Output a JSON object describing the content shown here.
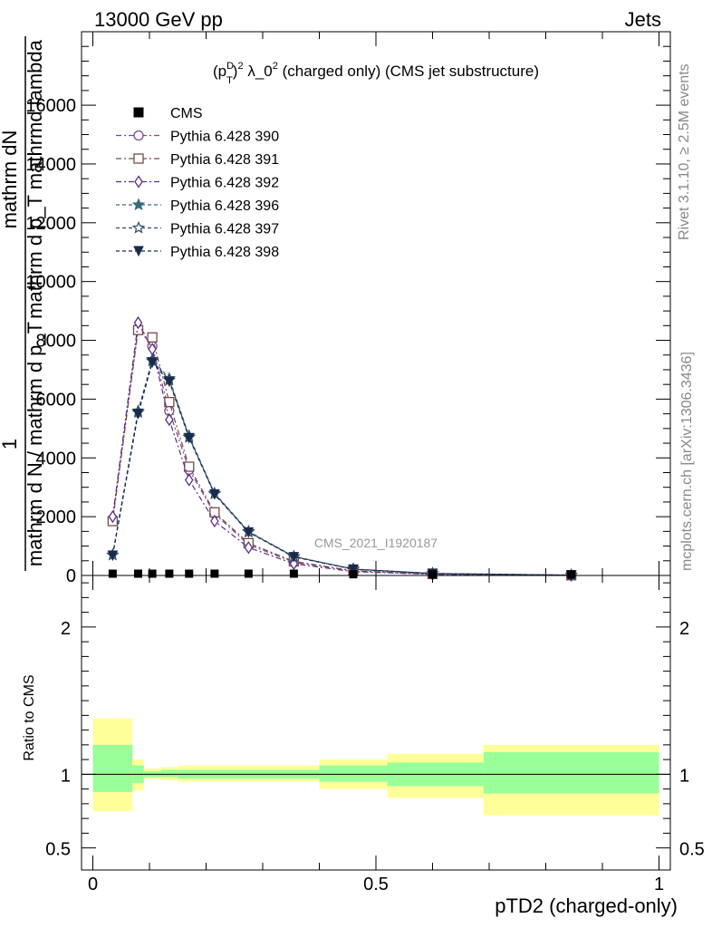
{
  "header": {
    "left": "13000 GeV pp",
    "right": "Jets"
  },
  "side_labels": {
    "rivet": "Rivet 3.1.10, ≥ 2.5M events",
    "mcplots": "mcplots.cern.ch [arXiv:1306.3436]"
  },
  "chart_data": [
    {
      "type": "line",
      "title_prefix": "(p",
      "title_sub": "T",
      "title_sup1": "D",
      "title_sup2": "2",
      "title_mid": " λ_0",
      "title_sup3": "2",
      "title_suffix": " (charged only) (CMS jet substructure)",
      "watermark": "CMS_2021_I1920187",
      "ylabel_line1": "mathrm dN",
      "ylabel_line2": "mathrm d p_T mathrmd lambda",
      "ylabel_under1": "1",
      "ylabel_under2": "mathrm d N / mathrm d p_T",
      "xlim": [
        -0.02,
        1.02
      ],
      "ylim": [
        0,
        18500
      ],
      "yticks": [
        {
          "v": 0,
          "label": "0"
        },
        {
          "v": 2000,
          "label": "2000"
        },
        {
          "v": 4000,
          "label": "4000"
        },
        {
          "v": 6000,
          "label": "6000"
        },
        {
          "v": 8000,
          "label": "8000"
        },
        {
          "v": 10000,
          "label": "10000"
        },
        {
          "v": 12000,
          "label": "12000"
        },
        {
          "v": 14000,
          "label": "14000"
        },
        {
          "v": 16000,
          "label": "16000"
        }
      ],
      "legend": "top-left",
      "cms": {
        "name": "CMS",
        "x": [
          0.035,
          0.08,
          0.105,
          0.135,
          0.17,
          0.215,
          0.275,
          0.355,
          0.46,
          0.6,
          0.845
        ],
        "y": [
          30,
          30,
          30,
          30,
          30,
          30,
          30,
          30,
          10,
          5,
          2
        ]
      },
      "series": [
        {
          "name": "Pythia 6.428 390",
          "marker": "circle-open",
          "color": "#7b4a8c",
          "dash": "6,3,2,3",
          "x": [
            0.035,
            0.08,
            0.105,
            0.135,
            0.17,
            0.215,
            0.275,
            0.355,
            0.46,
            0.6,
            0.845
          ],
          "y": [
            1900,
            8400,
            7800,
            5600,
            3600,
            2100,
            1050,
            450,
            150,
            45,
            8
          ]
        },
        {
          "name": "Pythia 6.428 391",
          "marker": "square-open",
          "color": "#7a4a4a",
          "dash": "6,3,2,3",
          "x": [
            0.035,
            0.08,
            0.105,
            0.135,
            0.17,
            0.215,
            0.275,
            0.355,
            0.46,
            0.6,
            0.845
          ],
          "y": [
            1850,
            8350,
            8100,
            5900,
            3700,
            2150,
            1100,
            480,
            160,
            50,
            8
          ]
        },
        {
          "name": "Pythia 6.428 392",
          "marker": "diamond-open",
          "color": "#5a2e8a",
          "dash": "6,3,2,3",
          "x": [
            0.035,
            0.08,
            0.105,
            0.135,
            0.17,
            0.215,
            0.275,
            0.355,
            0.46,
            0.6,
            0.845
          ],
          "y": [
            2000,
            8600,
            7700,
            5300,
            3250,
            1850,
            950,
            400,
            130,
            40,
            7
          ]
        },
        {
          "name": "Pythia 6.428 396",
          "marker": "star-filled",
          "color": "#3a6a7a",
          "dash": "4,3",
          "x": [
            0.035,
            0.08,
            0.105,
            0.135,
            0.17,
            0.215,
            0.275,
            0.355,
            0.46,
            0.6,
            0.845
          ],
          "y": [
            700,
            5600,
            7350,
            6700,
            4750,
            2800,
            1500,
            650,
            220,
            70,
            12
          ]
        },
        {
          "name": "Pythia 6.428 397",
          "marker": "star-open",
          "color": "#2e4a6a",
          "dash": "4,3",
          "x": [
            0.035,
            0.08,
            0.105,
            0.135,
            0.17,
            0.215,
            0.275,
            0.355,
            0.46,
            0.6,
            0.845
          ],
          "y": [
            700,
            5550,
            7300,
            6650,
            4700,
            2780,
            1480,
            640,
            215,
            68,
            12
          ]
        },
        {
          "name": "Pythia 6.428 398",
          "marker": "triangle-down-filled",
          "color": "#1a2a4a",
          "dash": "4,3",
          "x": [
            0.035,
            0.08,
            0.105,
            0.135,
            0.17,
            0.215,
            0.275,
            0.355,
            0.46,
            0.6,
            0.845
          ],
          "y": [
            680,
            5500,
            7250,
            6600,
            4680,
            2760,
            1470,
            630,
            210,
            66,
            12
          ]
        }
      ]
    },
    {
      "type": "area",
      "ylabel": "Ratio to CMS",
      "xlabel": "pTD2 (charged-only)",
      "xlim": [
        -0.02,
        1.02
      ],
      "ylim": [
        0.35,
        2.35
      ],
      "yticks": [
        {
          "v": 0.5,
          "label": "0.5"
        },
        {
          "v": 1,
          "label": "1"
        },
        {
          "v": 2,
          "label": "2"
        }
      ],
      "xticks": [
        {
          "v": 0,
          "label": "0"
        },
        {
          "v": 0.5,
          "label": "0.5"
        },
        {
          "v": 1,
          "label": "1"
        }
      ],
      "bands_color_outer": "#ffff99",
      "bands_color_inner": "#99ff99",
      "bands": [
        {
          "x0": 0.0,
          "x1": 0.07,
          "outer": [
            0.75,
            1.38
          ],
          "inner": [
            0.88,
            1.2
          ]
        },
        {
          "x0": 0.07,
          "x1": 0.09,
          "outer": [
            0.89,
            1.1
          ],
          "inner": [
            0.94,
            1.06
          ]
        },
        {
          "x0": 0.09,
          "x1": 0.12,
          "outer": [
            0.97,
            1.04
          ],
          "inner": [
            0.98,
            1.02
          ]
        },
        {
          "x0": 0.12,
          "x1": 0.15,
          "outer": [
            0.96,
            1.05
          ],
          "inner": [
            0.98,
            1.03
          ]
        },
        {
          "x0": 0.15,
          "x1": 0.4,
          "outer": [
            0.95,
            1.06
          ],
          "inner": [
            0.97,
            1.03
          ]
        },
        {
          "x0": 0.4,
          "x1": 0.52,
          "outer": [
            0.9,
            1.1
          ],
          "inner": [
            0.95,
            1.06
          ]
        },
        {
          "x0": 0.52,
          "x1": 0.69,
          "outer": [
            0.84,
            1.14
          ],
          "inner": [
            0.92,
            1.08
          ]
        },
        {
          "x0": 0.69,
          "x1": 1.0,
          "outer": [
            0.72,
            1.2
          ],
          "inner": [
            0.87,
            1.15
          ]
        }
      ]
    }
  ]
}
